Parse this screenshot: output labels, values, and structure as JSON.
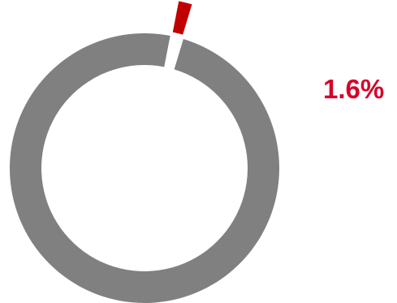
{
  "chart_data": {
    "type": "pie",
    "style": "donut",
    "title": "",
    "highlight": {
      "value_percent": 1.6,
      "label": "1.6%",
      "color": "#c00000",
      "exploded": true
    },
    "remainder": {
      "value_percent": 98.4,
      "color": "#808080"
    },
    "label_color": "#d6002a",
    "legend": "none"
  }
}
